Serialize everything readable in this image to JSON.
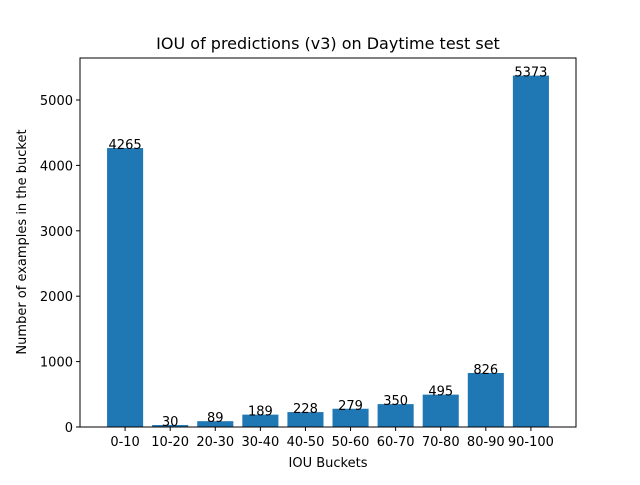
{
  "chart_data": {
    "type": "bar",
    "title": "IOU of predictions (v3) on Daytime test set",
    "xlabel": "IOU Buckets",
    "ylabel": "Number of examples in the bucket",
    "categories": [
      "0-10",
      "10-20",
      "20-30",
      "30-40",
      "40-50",
      "50-60",
      "60-70",
      "70-80",
      "80-90",
      "90-100"
    ],
    "values": [
      4265,
      30,
      89,
      189,
      228,
      279,
      350,
      495,
      826,
      5373
    ],
    "data_labels": [
      "4265",
      "30",
      "89",
      "189",
      "228",
      "279",
      "350",
      "495",
      "826",
      "5373"
    ],
    "ylim": [
      0,
      5642
    ],
    "yticks": [
      0,
      1000,
      2000,
      3000,
      4000,
      5000
    ],
    "grid": false,
    "bar_color": "#1f77b4"
  }
}
